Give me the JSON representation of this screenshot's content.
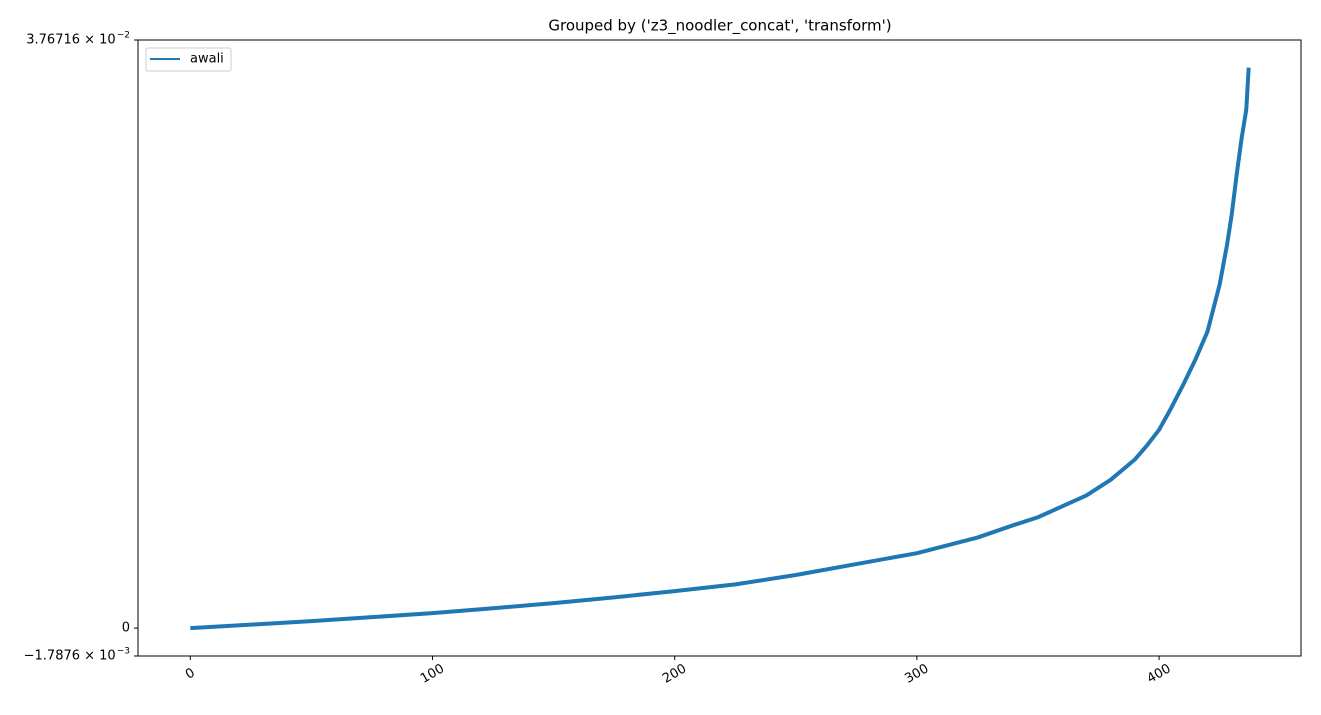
{
  "chart_data": {
    "type": "line",
    "title": "Grouped by ('z3_noodler_concat', 'transform')",
    "x": [
      0,
      25,
      50,
      75,
      100,
      125,
      150,
      175,
      200,
      225,
      250,
      275,
      300,
      325,
      340,
      350,
      360,
      370,
      380,
      390,
      395,
      400,
      405,
      410,
      415,
      420,
      425,
      428,
      430,
      432,
      434,
      436,
      437
    ],
    "series": [
      {
        "name": "awali",
        "color": "#1f77b4",
        "values": [
          0,
          0.00022,
          0.00045,
          0.0007,
          0.00096,
          0.00127,
          0.0016,
          0.00197,
          0.00237,
          0.0028,
          0.0034,
          0.0041,
          0.0048,
          0.0058,
          0.0066,
          0.0071,
          0.0078,
          0.0085,
          0.0095,
          0.0108,
          0.0117,
          0.0127,
          0.0141,
          0.0156,
          0.0172,
          0.019,
          0.022,
          0.0245,
          0.0265,
          0.029,
          0.0313,
          0.0332,
          0.0359
        ]
      }
    ],
    "xlim": [
      -21.6,
      458.6
    ],
    "xticks": [
      0,
      100,
      200,
      300,
      400
    ],
    "ylim": [
      -0.0017876,
      0.0376716
    ],
    "yticks": [
      {
        "value": -0.0017876,
        "label": "−1.7876 × 10",
        "exponent": "−3"
      },
      0,
      {
        "value": 0.0376716,
        "label": "3.76716 × 10",
        "exponent": "−2"
      }
    ],
    "legend": "upper left"
  }
}
